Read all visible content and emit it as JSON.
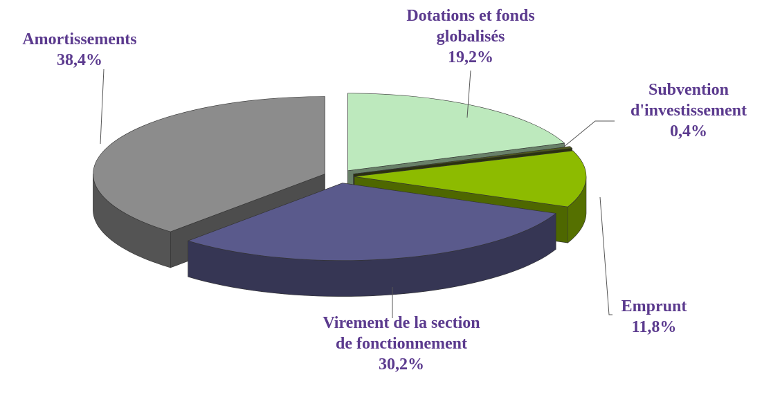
{
  "chart_data": {
    "type": "pie",
    "categories": [
      "Dotations et fonds globalisés",
      "Subvention d'investissement",
      "Emprunt",
      "Virement de la section de fonctionnement",
      "Amortissements"
    ],
    "values": [
      19.2,
      0.4,
      11.8,
      30.2,
      38.4
    ],
    "value_labels": [
      "19,2%",
      "0,4%",
      "11,8%",
      "30,2%",
      "38,4%"
    ],
    "colors": [
      "#bde9bd",
      "#4f5a1a",
      "#8dbb00",
      "#5a5a8c",
      "#8c8c8c"
    ]
  }
}
